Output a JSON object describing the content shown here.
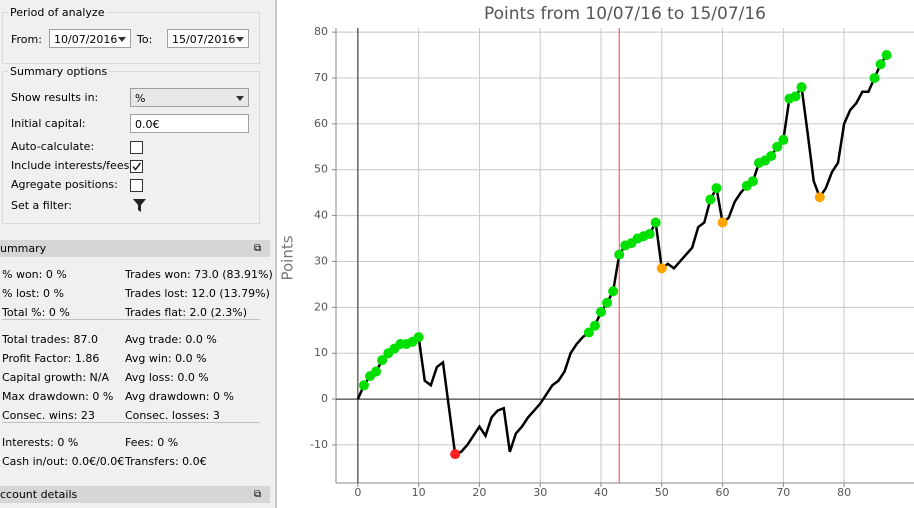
{
  "panel": {
    "period": {
      "title": "Period of analyze",
      "from_label": "From:",
      "from_value": "10/07/2016",
      "to_label": "To:",
      "to_value": "15/07/2016"
    },
    "options": {
      "title": "Summary options",
      "show_results_label": "Show results in:",
      "show_results_value": "%",
      "capital_label": "Initial capital:",
      "capital_value": "0.0€",
      "checks": [
        {
          "label": "Auto-calculate:",
          "checked": false
        },
        {
          "label": "Include interests/fees:",
          "checked": true
        },
        {
          "label": "Agregate positions:",
          "checked": false
        }
      ],
      "filter_label": "Set a filter:"
    },
    "summary_header": "ummary",
    "stats": [
      [
        [
          "% won: 0 %",
          "Trades won: 73.0 (83.91%)"
        ],
        [
          "% lost: 0 %",
          "Trades lost: 12.0 (13.79%)"
        ],
        [
          "Total %: 0 %",
          "Trades flat: 2.0 (2.3%)"
        ]
      ],
      [
        [
          "Total trades: 87.0",
          "Avg trade: 0.0 %"
        ],
        [
          "Profit Factor: 1.86",
          "Avg win: 0.0 %"
        ],
        [
          "Capital growth: N/A",
          "Avg loss: 0.0 %"
        ],
        [
          "Max drawdown: 0 %",
          "Avg drawdown: 0 %"
        ],
        [
          "Consec. wins: 23",
          "Consec. losses: 3"
        ]
      ],
      [
        [
          "Interests: 0 %",
          "Fees: 0 %"
        ],
        [
          "Cash in/out: 0.0€/0.0€",
          "Transfers: 0.0€"
        ]
      ]
    ],
    "account_header": "ccount details"
  },
  "chart_data": {
    "type": "line",
    "title": "Points from 10/07/16 to 15/07/16",
    "y_label": "Points",
    "x": [
      0,
      1,
      2,
      3,
      4,
      5,
      6,
      7,
      8,
      9,
      10,
      11,
      12,
      13,
      14,
      15,
      16,
      17,
      18,
      19,
      20,
      21,
      22,
      23,
      24,
      25,
      26,
      27,
      28,
      29,
      30,
      31,
      32,
      33,
      34,
      35,
      36,
      37,
      38,
      39,
      40,
      41,
      42,
      43,
      44,
      45,
      46,
      47,
      48,
      49,
      50,
      51,
      52,
      53,
      54,
      55,
      56,
      57,
      58,
      59,
      60,
      61,
      62,
      63,
      64,
      65,
      66,
      67,
      68,
      69,
      70,
      71,
      72,
      73,
      74,
      75,
      76,
      77,
      78,
      79,
      80,
      81,
      82,
      83,
      84,
      85,
      86,
      87
    ],
    "series": [
      {
        "color": "#000000",
        "values": [
          0,
          3,
          5,
          6,
          8.5,
          10,
          11,
          12,
          12,
          12.5,
          13.5,
          4,
          3,
          7,
          8,
          -2,
          -12,
          -11.5,
          -10,
          -8,
          -6,
          -8,
          -4,
          -2.5,
          -2,
          -11.5,
          -7.5,
          -6,
          -4,
          -2.5,
          -1,
          1,
          3,
          4,
          6,
          10,
          12,
          13.5,
          14.5,
          16,
          19,
          21,
          23.5,
          31.5,
          33.5,
          34,
          35,
          35.5,
          36,
          38.5,
          28.5,
          29.5,
          28.5,
          30,
          31.5,
          33,
          37.5,
          38.5,
          43.5,
          46,
          38.5,
          39.5,
          43,
          45,
          46.5,
          47.5,
          51.5,
          52,
          53,
          55,
          56.5,
          65.5,
          66,
          68,
          58,
          47.5,
          44,
          46,
          49.5,
          51.5,
          60,
          63,
          64.5,
          67,
          67,
          70,
          73,
          75
        ],
        "marker_colors": [
          null,
          "#00e000",
          "#00e000",
          "#00e000",
          "#00e000",
          "#00e000",
          "#00e000",
          "#00e000",
          "#00e000",
          "#00e000",
          "#00e000",
          null,
          null,
          null,
          null,
          null,
          "#ff2020",
          null,
          null,
          null,
          null,
          null,
          null,
          null,
          null,
          null,
          null,
          null,
          null,
          null,
          null,
          null,
          null,
          null,
          null,
          null,
          null,
          null,
          "#00e000",
          "#00e000",
          "#00e000",
          "#00e000",
          "#00e000",
          "#00e000",
          "#00e000",
          "#00e000",
          "#00e000",
          "#00e000",
          "#00e000",
          "#00e000",
          "#ffa500",
          null,
          null,
          null,
          null,
          null,
          null,
          null,
          "#00e000",
          "#00e000",
          "#ffa500",
          null,
          null,
          null,
          "#00e000",
          "#00e000",
          "#00e000",
          "#00e000",
          "#00e000",
          "#00e000",
          "#00e000",
          "#00e000",
          "#00e000",
          "#00e000",
          null,
          null,
          "#ffa500",
          null,
          null,
          null,
          null,
          null,
          null,
          null,
          null,
          "#00e000",
          "#00e000",
          "#00e000"
        ]
      }
    ],
    "xlim": [
      -3.6,
      91.5
    ],
    "ylim": [
      -18.3,
      80.9
    ],
    "xticks": [
      0,
      10,
      20,
      30,
      40,
      50,
      60,
      70,
      80
    ],
    "yticks": [
      -10,
      0,
      10,
      20,
      30,
      40,
      50,
      60,
      70,
      80
    ],
    "grid": true,
    "zero_lines": true,
    "vline": {
      "x": 43,
      "color": "#ff4040"
    }
  }
}
